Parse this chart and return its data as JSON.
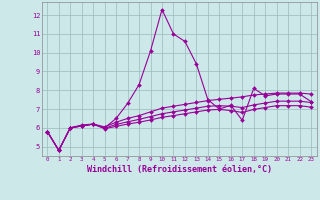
{
  "xlabel": "Windchill (Refroidissement éolien,°C)",
  "bg_color": "#cce8e8",
  "grid_color": "#99bbbb",
  "line_color": "#990099",
  "xlim": [
    -0.5,
    23.5
  ],
  "ylim": [
    4.5,
    12.7
  ],
  "yticks": [
    5,
    6,
    7,
    8,
    9,
    10,
    11,
    12
  ],
  "xticks": [
    0,
    1,
    2,
    3,
    4,
    5,
    6,
    7,
    8,
    9,
    10,
    11,
    12,
    13,
    14,
    15,
    16,
    17,
    18,
    19,
    20,
    21,
    22,
    23
  ],
  "series": [
    {
      "x": [
        0,
        1,
        2,
        3,
        4,
        5,
        6,
        7,
        8,
        9,
        10,
        11,
        12,
        13,
        14,
        15,
        16,
        17,
        18,
        19,
        20,
        21,
        22,
        23
      ],
      "y": [
        5.8,
        4.8,
        6.0,
        6.1,
        6.2,
        6.0,
        6.5,
        7.3,
        8.3,
        10.1,
        12.3,
        11.0,
        10.6,
        9.4,
        7.5,
        7.0,
        7.2,
        6.4,
        8.1,
        7.7,
        7.8,
        7.8,
        7.8,
        7.4
      ]
    },
    {
      "x": [
        0,
        1,
        2,
        3,
        4,
        5,
        6,
        7,
        8,
        9,
        10,
        11,
        12,
        13,
        14,
        15,
        16,
        17,
        18,
        19,
        20,
        21,
        22,
        23
      ],
      "y": [
        5.8,
        4.8,
        6.0,
        6.15,
        6.2,
        6.05,
        6.3,
        6.5,
        6.65,
        6.85,
        7.05,
        7.15,
        7.25,
        7.35,
        7.45,
        7.52,
        7.58,
        7.65,
        7.75,
        7.8,
        7.85,
        7.85,
        7.85,
        7.8
      ]
    },
    {
      "x": [
        0,
        1,
        2,
        3,
        4,
        5,
        6,
        7,
        8,
        9,
        10,
        11,
        12,
        13,
        14,
        15,
        16,
        17,
        18,
        19,
        20,
        21,
        22,
        23
      ],
      "y": [
        5.8,
        4.8,
        6.0,
        6.1,
        6.2,
        5.98,
        6.18,
        6.32,
        6.45,
        6.6,
        6.75,
        6.85,
        6.95,
        7.05,
        7.15,
        7.18,
        7.15,
        7.08,
        7.22,
        7.32,
        7.42,
        7.42,
        7.42,
        7.35
      ]
    },
    {
      "x": [
        0,
        1,
        2,
        3,
        4,
        5,
        6,
        7,
        8,
        9,
        10,
        11,
        12,
        13,
        14,
        15,
        16,
        17,
        18,
        19,
        20,
        21,
        22,
        23
      ],
      "y": [
        5.8,
        4.8,
        6.0,
        6.1,
        6.2,
        5.95,
        6.08,
        6.2,
        6.3,
        6.42,
        6.56,
        6.65,
        6.75,
        6.85,
        6.95,
        6.98,
        6.92,
        6.82,
        6.98,
        7.08,
        7.18,
        7.18,
        7.18,
        7.1
      ]
    }
  ]
}
